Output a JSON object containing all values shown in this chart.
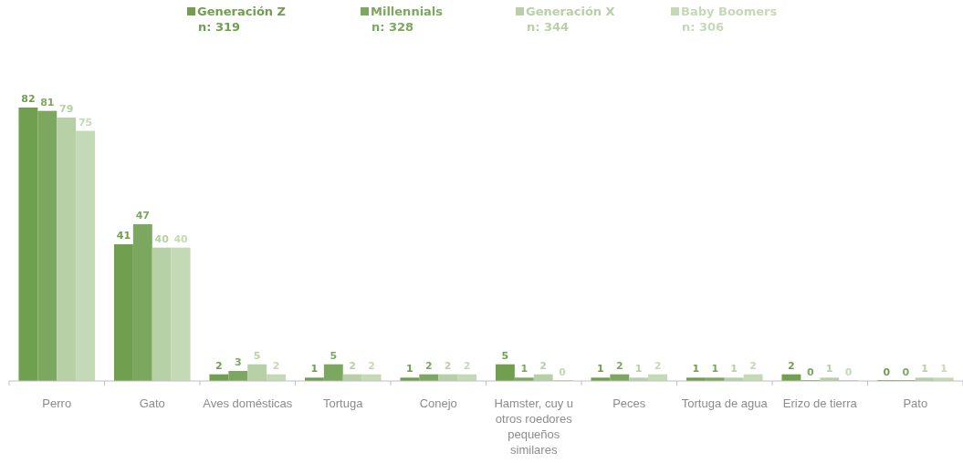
{
  "chart_data": {
    "type": "bar",
    "categories": [
      "Perro",
      "Gato",
      "Aves domésticas",
      "Tortuga",
      "Conejo",
      "Hamster, cuy u otros roedores pequeños similares",
      "Peces",
      "Tortuga de agua",
      "Erizo de tierra",
      "Pato"
    ],
    "series": [
      {
        "name": "Generación Z\nn: 319",
        "color": "#6f9f4f",
        "values": [
          82,
          41,
          2,
          1,
          1,
          5,
          1,
          1,
          2,
          0
        ]
      },
      {
        "name": "Millennials\nn: 328",
        "color": "#7ba75e",
        "values": [
          81,
          47,
          3,
          5,
          2,
          1,
          2,
          1,
          0,
          0
        ]
      },
      {
        "name": "Generación X\nn: 344",
        "color": "#b7d0a6",
        "values": [
          79,
          40,
          5,
          2,
          2,
          2,
          1,
          1,
          1,
          1
        ]
      },
      {
        "name": "Baby Boomers\nn: 306",
        "color": "#c4d9b5",
        "values": [
          75,
          40,
          2,
          2,
          2,
          0,
          2,
          2,
          0,
          1
        ]
      }
    ],
    "data_labels": true,
    "legend": "top"
  }
}
